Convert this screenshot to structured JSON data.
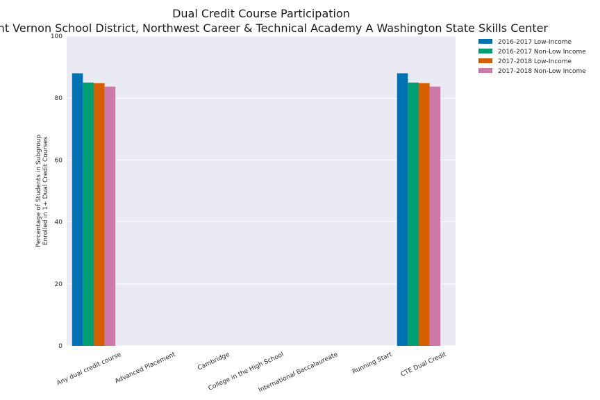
{
  "chart_data": {
    "type": "bar",
    "title": "Dual Credit Course Participation",
    "subtitle": "Mount Vernon School District, Northwest Career & Technical Academy A Washington State Skills Center",
    "ylabel_line1": "Percentage of Students in Subgroup",
    "ylabel_line2": "Enrolled in 1+ Dual Credit Courses",
    "xlabel": "",
    "ylim": [
      0,
      100
    ],
    "yticks": [
      0,
      20,
      40,
      60,
      80,
      100
    ],
    "grid": true,
    "legend_position": "outside-top-right",
    "categories": [
      "Any dual credit course",
      "Advanced Placement",
      "Cambridge",
      "College in the High School",
      "International Baccalaureate",
      "Running Start",
      "CTE Dual Credit"
    ],
    "series": [
      {
        "name": "2016-2017 Low-Income",
        "color": "#0072b2",
        "values": [
          88,
          0,
          0,
          0,
          0,
          0,
          88
        ]
      },
      {
        "name": "2016-2017 Non-Low Income",
        "color": "#009e73",
        "values": [
          85,
          0,
          0,
          0,
          0,
          0,
          85
        ]
      },
      {
        "name": "2017-2018 Low-Income",
        "color": "#d55e00",
        "values": [
          84.8,
          0,
          0,
          0,
          0,
          0,
          84.8
        ]
      },
      {
        "name": "2017-2018 Non-Low Income",
        "color": "#cc79a7",
        "values": [
          83.7,
          0,
          0,
          0,
          0,
          0,
          83.7
        ]
      }
    ],
    "colors": {
      "plot_background": "#eaeaf2",
      "grid": "#ffffff"
    }
  }
}
